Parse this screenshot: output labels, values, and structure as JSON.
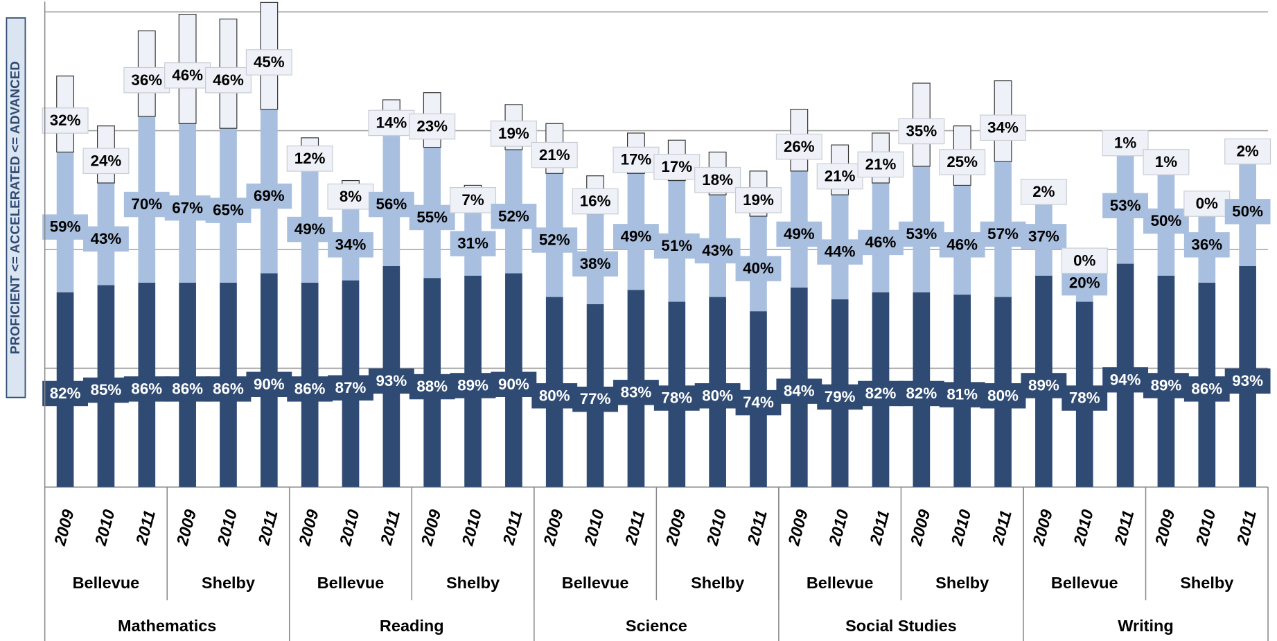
{
  "chart_data": {
    "type": "stacked-bar",
    "y_label": "PROFICIENT <= ACCELERATED <= ADVANCED",
    "categories": [
      "2009",
      "2010",
      "2011",
      "2009",
      "2010",
      "2011",
      "2009",
      "2010",
      "2011",
      "2009",
      "2010",
      "2011",
      "2009",
      "2010",
      "2011",
      "2009",
      "2010",
      "2011",
      "2009",
      "2010",
      "2011",
      "2009",
      "2010",
      "2011",
      "2009",
      "2010",
      "2011",
      "2009",
      "2010",
      "2011"
    ],
    "school_labels": [
      "Bellevue",
      "Shelby",
      "Bellevue",
      "Shelby",
      "Bellevue",
      "Shelby",
      "Bellevue",
      "Shelby",
      "Bellevue",
      "Shelby"
    ],
    "subject_labels": [
      "Mathematics",
      "Reading",
      "Science",
      "Social Studies",
      "Writing"
    ],
    "ylim": [
      0,
      205
    ],
    "yticks": [
      0,
      50,
      100,
      150,
      200
    ],
    "grid": true,
    "series": [
      {
        "color": "#2f4b73",
        "label_text_color": "#ffffff",
        "values": [
          82,
          85,
          86,
          86,
          86,
          90,
          86,
          87,
          93,
          88,
          89,
          90,
          80,
          77,
          83,
          78,
          80,
          74,
          84,
          79,
          82,
          82,
          81,
          80,
          89,
          78,
          94,
          89,
          86,
          93
        ],
        "value_labels": [
          "82%",
          "85%",
          "86%",
          "86%",
          "86%",
          "90%",
          "86%",
          "87%",
          "93%",
          "88%",
          "89%",
          "90%",
          "80%",
          "77%",
          "83%",
          "78%",
          "80%",
          "74%",
          "84%",
          "79%",
          "82%",
          "82%",
          "81%",
          "80%",
          "89%",
          "78%",
          "94%",
          "89%",
          "86%",
          "93%"
        ]
      },
      {
        "color": "#a8bfdf",
        "label_text_color": "#000000",
        "values": [
          59,
          43,
          70,
          67,
          65,
          69,
          49,
          34,
          56,
          55,
          31,
          52,
          52,
          38,
          49,
          51,
          43,
          40,
          49,
          44,
          46,
          53,
          46,
          57,
          37,
          20,
          53,
          50,
          36,
          50
        ],
        "value_labels": [
          "59%",
          "43%",
          "70%",
          "67%",
          "65%",
          "69%",
          "49%",
          "34%",
          "56%",
          "55%",
          "31%",
          "52%",
          "52%",
          "38%",
          "49%",
          "51%",
          "43%",
          "40%",
          "49%",
          "44%",
          "46%",
          "53%",
          "46%",
          "57%",
          "37%",
          "20%",
          "53%",
          "50%",
          "36%",
          "50%"
        ]
      },
      {
        "color": "#eef2f8",
        "label_text_color": "#000000",
        "values": [
          32,
          24,
          36,
          46,
          46,
          45,
          12,
          8,
          14,
          23,
          7,
          19,
          21,
          16,
          17,
          17,
          18,
          19,
          26,
          21,
          21,
          35,
          25,
          34,
          2,
          0,
          1,
          1,
          0,
          2
        ],
        "value_labels": [
          "32%",
          "24%",
          "36%",
          "46%",
          "46%",
          "45%",
          "12%",
          "8%",
          "14%",
          "23%",
          "7%",
          "19%",
          "21%",
          "16%",
          "17%",
          "17%",
          "18%",
          "19%",
          "26%",
          "21%",
          "21%",
          "35%",
          "25%",
          "34%",
          "2%",
          "0%",
          "1%",
          "1%",
          "0%",
          "2%"
        ]
      }
    ]
  }
}
